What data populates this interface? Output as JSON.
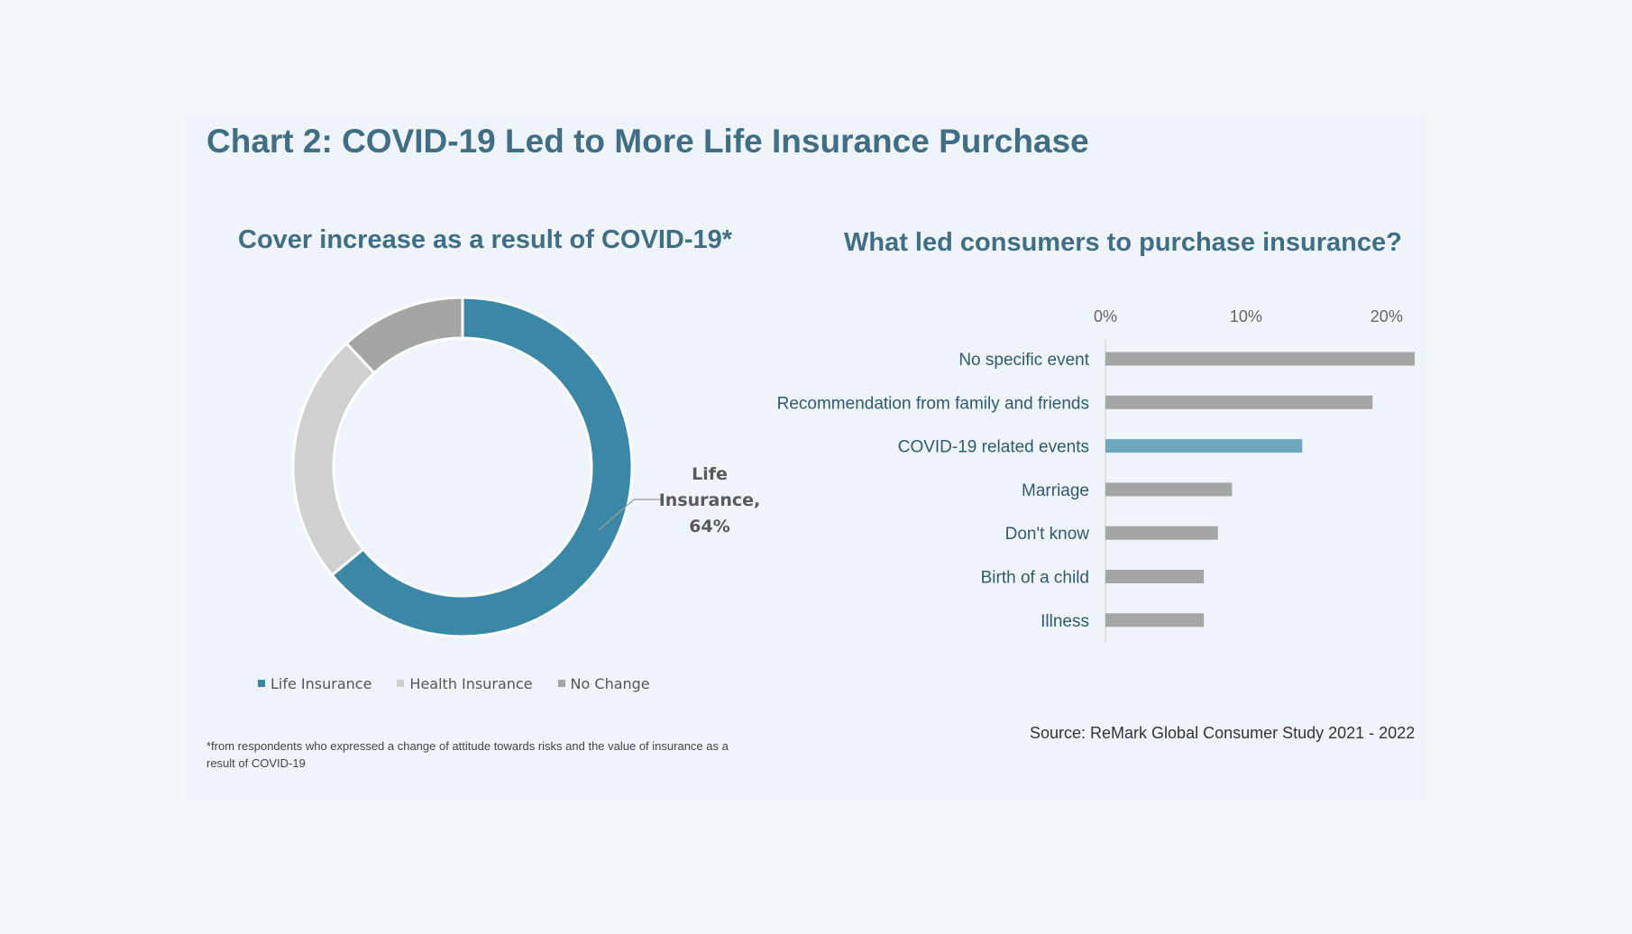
{
  "title": "Chart 2: COVID-19 Led to More Life Insurance Purchase",
  "source": "Source: ReMark Global Consumer Study 2021 - 2022",
  "footnote": "*from respondents who expressed a change of attitude towards risks and the value of insurance as a result of COVID-19",
  "colors": {
    "teal": "#3a87a6",
    "light_teal": "#6fa6bf",
    "light_gray": "#d0d0d0",
    "gray": "#a5a5a5",
    "title": "#3f6e85"
  },
  "chart_data": [
    {
      "type": "pie",
      "variant": "donut",
      "title": "Cover increase as a result of COVID-19*",
      "slices": [
        {
          "name": "Life Insurance",
          "value": 64,
          "color": "#3a87a6"
        },
        {
          "name": "Health Insurance",
          "value": 24,
          "color": "#d0d0d0"
        },
        {
          "name": "No Change",
          "value": 12,
          "color": "#a5a5a5"
        }
      ],
      "callout": {
        "line1": "Life",
        "line2": "Insurance,",
        "line3": "64%"
      },
      "legend": [
        "Life Insurance",
        "Health Insurance",
        "No Change"
      ],
      "legend_position": "bottom"
    },
    {
      "type": "bar",
      "orientation": "horizontal",
      "title": "What led consumers to purchase insurance?",
      "categories": [
        "No specific event",
        "Recommendation from family and friends",
        "COVID-19 related events",
        "Marriage",
        "Don't know",
        "Birth of a child",
        "Illness"
      ],
      "values": [
        22,
        19,
        14,
        9,
        8,
        7,
        7
      ],
      "highlight_index": 2,
      "xlim": [
        0,
        22
      ],
      "ticks": [
        0,
        10,
        20
      ],
      "tick_labels": [
        "0%",
        "10%",
        "20%"
      ],
      "axis_position": "top"
    }
  ]
}
